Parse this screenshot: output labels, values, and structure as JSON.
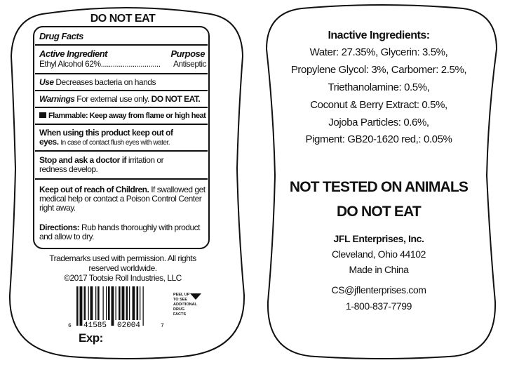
{
  "front": {
    "header": "DO NOT EAT",
    "drug_facts": {
      "title": "Drug Facts",
      "active_ingredient_heading": "Active Ingredient",
      "purpose_heading": "Purpose",
      "active_ingredient": "Ethyl Alcohol 62%",
      "leader": "..............................",
      "purpose": "Antiseptic",
      "use_label": "Use",
      "use_text": "Decreases bacteria on hands",
      "warnings_label": "Warnings",
      "warnings_text": "For external use only.",
      "warnings_bold": "DO NOT EAT.",
      "flammable": "Flammable: Keep away from flame or high heat",
      "when_using_bold_1": "When using this product keep out of",
      "when_using_bold_2": "eyes.",
      "when_using_text": "In case of contact flush eyes with water.",
      "stop_bold": "Stop and ask a doctor if",
      "stop_text_1": "irritation or",
      "stop_text_2": "redness develop.",
      "keep_bold": "Keep out of reach of Children.",
      "keep_text_1": "If swallowed get",
      "keep_text_2": "medical help or contact a Poison Control Center",
      "keep_text_3": "right away.",
      "directions_bold": "Directions:",
      "directions_text_1": "Rub hands thoroughly with product",
      "directions_text_2": "and allow to dry."
    },
    "trademark_1": "Trademarks used with permission. All rights",
    "trademark_2": "reserved worldwide.",
    "copyright": "©2017 Tootsie Roll Industries, LLC",
    "barcode": {
      "lead_digit": "6",
      "left_digits": "41585",
      "right_digits": "02004",
      "check_digit": "7"
    },
    "peel_note": [
      "PEEL UP",
      "TO SEE",
      "ADDITIONAL",
      "DRUG",
      "FACTS"
    ],
    "exp_label": "Exp:"
  },
  "back": {
    "inactive_title": "Inactive Ingredients:",
    "inactive_lines": [
      "Water: 27.35%, Glycerin: 3.5%,",
      "Propylene Glycol: 3%, Carbomer: 2.5%,",
      "Triethanolamine: 0.5%,",
      "Coconut & Berry Extract: 0.5%,",
      "Jojoba Particles: 0.6%,",
      "Pigment: GB20-1620 red,: 0.05%"
    ],
    "claim_1": "NOT TESTED ON ANIMALS",
    "claim_2": "DO NOT EAT",
    "company": "JFL Enterprises, Inc.",
    "city": "Cleveland, Ohio 44102",
    "origin": "Made in China",
    "email": "CS@jflenterprises.com",
    "phone": "1-800-837-7799"
  }
}
